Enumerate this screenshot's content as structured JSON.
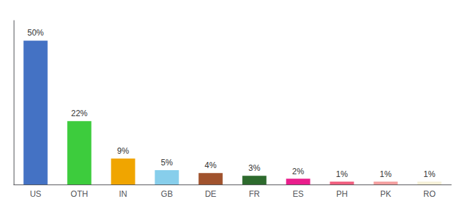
{
  "chart_data": {
    "type": "bar",
    "categories": [
      "US",
      "OTH",
      "IN",
      "GB",
      "DE",
      "FR",
      "ES",
      "PH",
      "PK",
      "RO"
    ],
    "values": [
      50,
      22,
      9,
      5,
      4,
      3,
      2,
      1,
      1,
      1
    ],
    "value_labels": [
      "50%",
      "22%",
      "9%",
      "5%",
      "4%",
      "3%",
      "2%",
      "1%",
      "1%",
      "1%"
    ],
    "colors": [
      "#4472c4",
      "#3dcc3d",
      "#f0a500",
      "#87ceeb",
      "#a0522d",
      "#2d6a2d",
      "#e91e8c",
      "#f06080",
      "#f4a0a0",
      "#f5f0d8"
    ],
    "ylim": [
      0,
      57
    ],
    "grid": false,
    "data_labels": true,
    "tick_labels": "x"
  }
}
